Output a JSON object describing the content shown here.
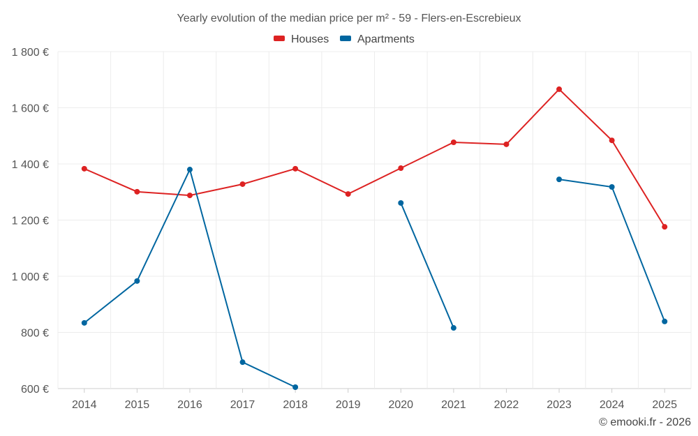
{
  "chart_data": {
    "type": "line",
    "title": "Yearly evolution of the median price per m² - 59 - Flers-en-Escrebieux",
    "xlabel": "",
    "ylabel": "",
    "categories": [
      "2014",
      "2015",
      "2016",
      "2017",
      "2018",
      "2019",
      "2020",
      "2021",
      "2022",
      "2023",
      "2024",
      "2025"
    ],
    "ylim": [
      600,
      1800
    ],
    "yticks": [
      600,
      800,
      1000,
      1200,
      1400,
      1600,
      1800
    ],
    "ytick_labels": [
      "600 €",
      "800 €",
      "1 000 €",
      "1 200 €",
      "1 400 €",
      "1 600 €",
      "1 800 €"
    ],
    "grid": true,
    "legend_position": "top-center",
    "series": [
      {
        "name": "Houses",
        "color": "#dd2222",
        "values": [
          1383,
          1301,
          1288,
          1328,
          1383,
          1293,
          1385,
          1477,
          1470,
          1666,
          1484,
          1176
        ]
      },
      {
        "name": "Apartments",
        "color": "#0066a0",
        "values": [
          834,
          983,
          1380,
          694,
          605,
          null,
          1261,
          816,
          null,
          1345,
          1318,
          839
        ]
      }
    ]
  },
  "credit": "© emooki.fr - 2026"
}
